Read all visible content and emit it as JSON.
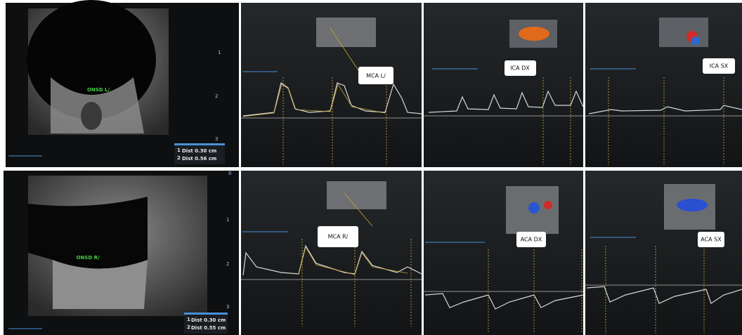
{
  "panels": [
    {
      "label": "ONSD L/",
      "measurements": [
        {
          "marker": "1",
          "text": "Dist  0.30 cm"
        },
        {
          "marker": "2",
          "text": "Dist  0.56 cm"
        }
      ],
      "depth_marks": [
        "1",
        "2",
        "3"
      ]
    },
    {
      "label": "MCA L/"
    },
    {
      "label": "ICA DX"
    },
    {
      "label": "ICA SX"
    },
    {
      "label": "ONSD R/",
      "measurements": [
        {
          "marker": "1",
          "text": "Dist  0.30 cm"
        },
        {
          "marker": "2",
          "text": "Dist  0.55 cm"
        }
      ],
      "depth_marks": [
        "0",
        "1",
        "2",
        "3"
      ]
    },
    {
      "label": "MCA R/"
    },
    {
      "label": "ACA DX"
    },
    {
      "label": "ACA SX"
    }
  ]
}
